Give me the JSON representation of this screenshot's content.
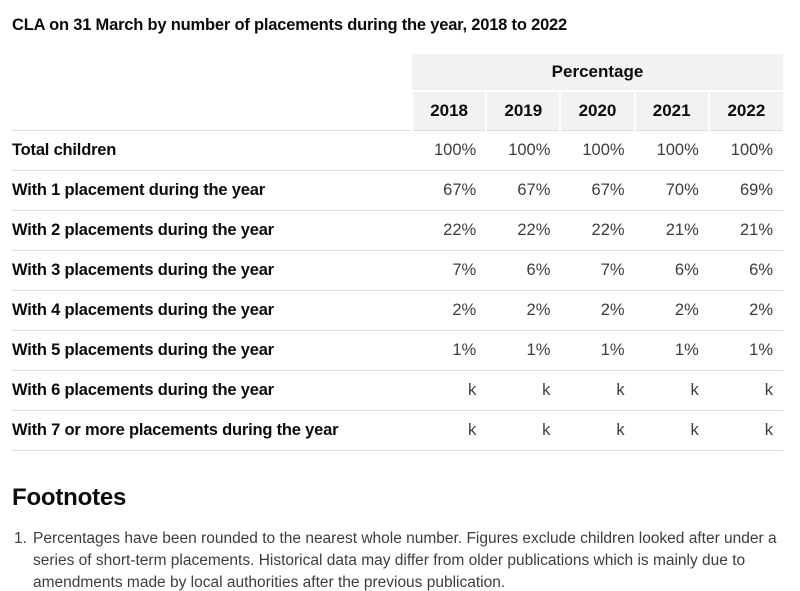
{
  "title": "CLA on 31 March by number of placements during the year, 2018 to 2022",
  "table": {
    "group_header": "Percentage",
    "years": [
      "2018",
      "2019",
      "2020",
      "2021",
      "2022"
    ],
    "rows": [
      {
        "label": "Total children",
        "values": [
          "100%",
          "100%",
          "100%",
          "100%",
          "100%"
        ]
      },
      {
        "label": "With 1 placement during the year",
        "values": [
          "67%",
          "67%",
          "67%",
          "70%",
          "69%"
        ]
      },
      {
        "label": "With 2 placements during the year",
        "values": [
          "22%",
          "22%",
          "22%",
          "21%",
          "21%"
        ]
      },
      {
        "label": "With 3 placements during the year",
        "values": [
          "7%",
          "6%",
          "7%",
          "6%",
          "6%"
        ]
      },
      {
        "label": "With 4 placements during the year",
        "values": [
          "2%",
          "2%",
          "2%",
          "2%",
          "2%"
        ]
      },
      {
        "label": "With 5 placements during the year",
        "values": [
          "1%",
          "1%",
          "1%",
          "1%",
          "1%"
        ]
      },
      {
        "label": "With 6 placements during the year",
        "values": [
          "k",
          "k",
          "k",
          "k",
          "k"
        ]
      },
      {
        "label": "With 7 or more placements during the year",
        "values": [
          "k",
          "k",
          "k",
          "k",
          "k"
        ]
      }
    ]
  },
  "footnotes": {
    "heading": "Footnotes",
    "items": [
      {
        "number": "1.",
        "text": "Percentages have been rounded to the nearest whole number. Figures exclude children looked after under a series of short-term placements. Historical data may differ from older publications which is mainly due to amendments made by local authorities after the previous publication."
      }
    ]
  },
  "colors": {
    "header_background": "#f3f2f1",
    "primary_text": "#0b0c0c",
    "secondary_text": "#3d3d3d",
    "row_border": "#dcdcdc"
  },
  "chart_data": {
    "type": "table",
    "title": "CLA on 31 March by number of placements during the year, 2018 to 2022",
    "unit": "Percentage",
    "categories": [
      "2018",
      "2019",
      "2020",
      "2021",
      "2022"
    ],
    "series": [
      {
        "name": "Total children",
        "values": [
          "100%",
          "100%",
          "100%",
          "100%",
          "100%"
        ]
      },
      {
        "name": "With 1 placement during the year",
        "values": [
          "67%",
          "67%",
          "67%",
          "70%",
          "69%"
        ]
      },
      {
        "name": "With 2 placements during the year",
        "values": [
          "22%",
          "22%",
          "22%",
          "21%",
          "21%"
        ]
      },
      {
        "name": "With 3 placements during the year",
        "values": [
          "7%",
          "6%",
          "7%",
          "6%",
          "6%"
        ]
      },
      {
        "name": "With 4 placements during the year",
        "values": [
          "2%",
          "2%",
          "2%",
          "2%",
          "2%"
        ]
      },
      {
        "name": "With 5 placements during the year",
        "values": [
          "1%",
          "1%",
          "1%",
          "1%",
          "1%"
        ]
      },
      {
        "name": "With 6 placements during the year",
        "values": [
          "k",
          "k",
          "k",
          "k",
          "k"
        ]
      },
      {
        "name": "With 7 or more placements during the year",
        "values": [
          "k",
          "k",
          "k",
          "k",
          "k"
        ]
      }
    ],
    "notes": [
      "Percentages have been rounded to the nearest whole number. Figures exclude children looked after under a series of short-term placements. Historical data may differ from older publications which is mainly due to amendments made by local authorities after the previous publication."
    ]
  }
}
